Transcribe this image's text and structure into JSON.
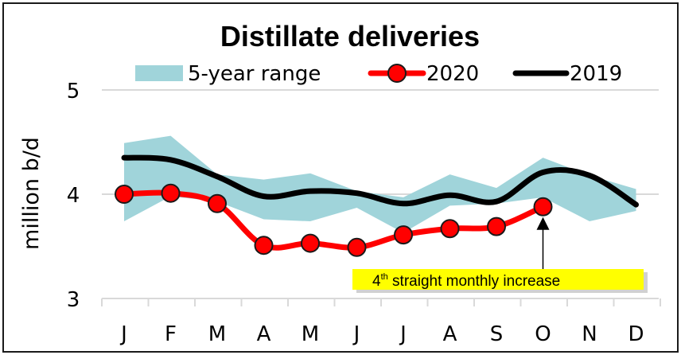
{
  "chart_data": {
    "type": "line",
    "title": "Distillate deliveries",
    "xlabel": "",
    "ylabel": "million b/d",
    "ylim": [
      3,
      5
    ],
    "yticks": [
      "3",
      "4",
      "5"
    ],
    "ytick_values": [
      3,
      4,
      5
    ],
    "grid": true,
    "legend_placement": "top",
    "categories": [
      "J",
      "F",
      "M",
      "A",
      "M",
      "J",
      "J",
      "A",
      "S",
      "O",
      "N",
      "D"
    ],
    "range_band": {
      "name": "5-year range",
      "color": "#a0d4da",
      "upper": [
        4.49,
        4.56,
        4.19,
        4.14,
        4.2,
        4.03,
        3.97,
        4.19,
        4.06,
        4.35,
        4.18,
        4.05
      ],
      "lower": [
        3.74,
        3.98,
        3.93,
        3.76,
        3.74,
        3.87,
        3.63,
        3.89,
        3.91,
        3.97,
        3.74,
        3.84
      ]
    },
    "series": [
      {
        "name": "2020",
        "color": "#ff0000",
        "marker": "circle",
        "values": [
          4.0,
          4.01,
          3.91,
          3.51,
          3.53,
          3.49,
          3.61,
          3.67,
          3.69,
          3.88,
          null,
          null
        ]
      },
      {
        "name": "2019",
        "color": "#000000",
        "marker": "none",
        "values": [
          4.35,
          4.33,
          4.17,
          3.98,
          4.03,
          4.01,
          3.91,
          3.99,
          3.93,
          4.21,
          4.18,
          3.9
        ]
      }
    ],
    "annotation": {
      "text_prefix": "4",
      "text_sup": "th",
      "text_rest": " straight monthly increase",
      "target_category_index": 9,
      "background": "#ffff00"
    }
  }
}
